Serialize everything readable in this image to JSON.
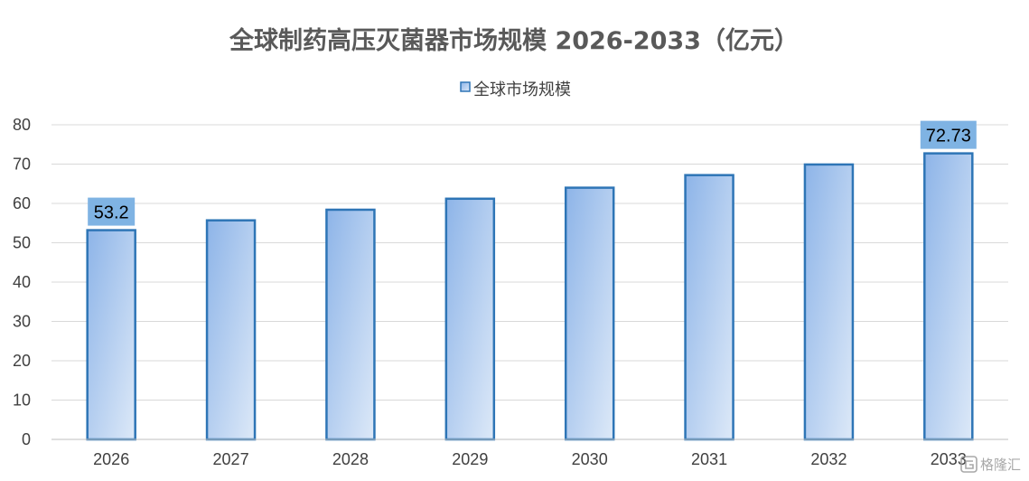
{
  "chart_data": {
    "type": "bar",
    "title": "全球制药高压灭菌器市场规模 2026-2033（亿元）",
    "categories": [
      "2026",
      "2027",
      "2028",
      "2029",
      "2030",
      "2031",
      "2032",
      "2033"
    ],
    "series": [
      {
        "name": "全球市场规模",
        "values": [
          53.2,
          55.7,
          58.4,
          61.2,
          64.0,
          67.2,
          69.9,
          72.73
        ]
      }
    ],
    "data_labels": {
      "2026": "53.2",
      "2033": "72.73"
    },
    "ylim": [
      0,
      80
    ],
    "yticks": [
      0,
      10,
      20,
      30,
      40,
      50,
      60,
      70,
      80
    ],
    "grid": true,
    "legend_position": "top-center",
    "xlabel": "",
    "ylabel": ""
  },
  "colors": {
    "bar_border": "#2e75b6",
    "bar_fill_dark": "#8db4e8",
    "bar_fill_light": "#dde9f8",
    "label_bg": "#7fb3e3",
    "grid": "#d9d9d9"
  },
  "watermark": {
    "text": "格隆汇",
    "icon": "glh-logo-icon"
  }
}
